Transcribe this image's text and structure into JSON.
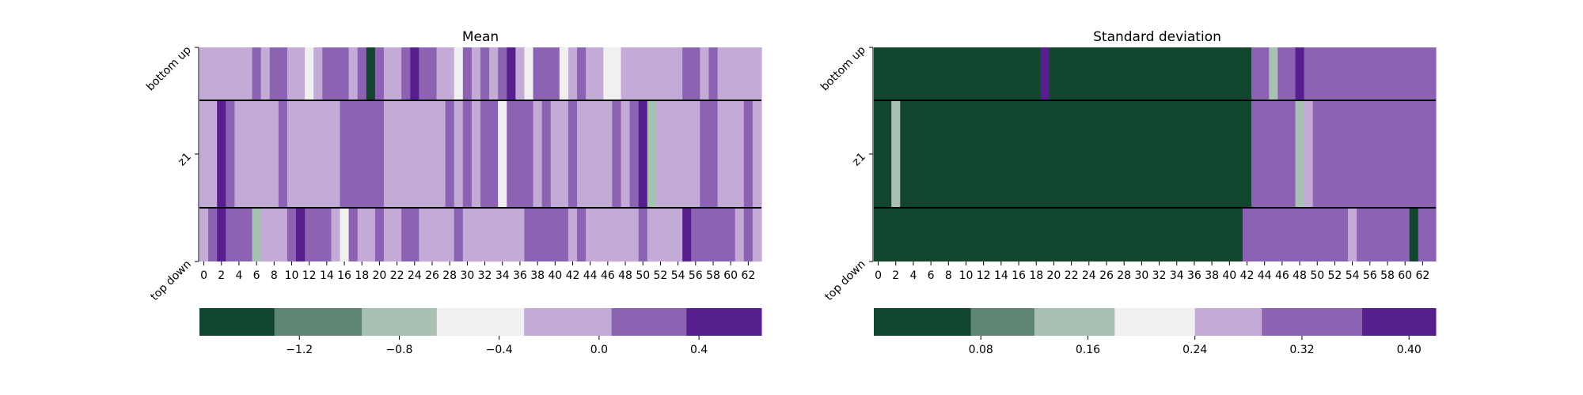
{
  "palette": [
    "#12452e",
    "#5d8571",
    "#a8c1b3",
    "#f0f0f0",
    "#c3aad7",
    "#8c63b2",
    "#571f8e"
  ],
  "chart_data": [
    {
      "type": "heatmap",
      "title": "Mean",
      "row_labels": [
        "bottom up",
        "z1",
        "top down"
      ],
      "x_tick_labels": [
        "0",
        "2",
        "4",
        "6",
        "8",
        "10",
        "12",
        "14",
        "16",
        "18",
        "20",
        "22",
        "24",
        "26",
        "28",
        "30",
        "32",
        "34",
        "36",
        "38",
        "40",
        "42",
        "44",
        "46",
        "48",
        "50",
        "52",
        "54",
        "56",
        "58",
        "60",
        "62"
      ],
      "n_cols": 64,
      "rows": [
        [
          0.0,
          0.0,
          0.0,
          0.0,
          0.0,
          0.0,
          0.2,
          0.0,
          0.2,
          0.2,
          0.0,
          0.0,
          -0.4,
          0.0,
          0.2,
          0.2,
          0.2,
          0.0,
          0.2,
          -1.4,
          0.2,
          0.0,
          0.0,
          0.2,
          0.5,
          0.2,
          0.2,
          0.0,
          0.0,
          -0.4,
          0.2,
          0.0,
          0.2,
          0.0,
          0.2,
          0.5,
          0.0,
          -0.4,
          0.2,
          0.2,
          0.2,
          -0.4,
          0.0,
          0.2,
          0.0,
          0.0,
          -0.4,
          -0.4,
          0.0,
          0.0,
          0.0,
          0.0,
          0.0,
          0.0,
          0.0,
          0.2,
          0.2,
          0.0,
          0.2,
          0.0,
          0.0,
          0.0,
          0.0,
          0.0
        ],
        [
          0.0,
          0.0,
          0.5,
          0.2,
          0.0,
          0.0,
          0.0,
          0.0,
          0.0,
          0.2,
          0.0,
          0.0,
          0.0,
          0.0,
          0.0,
          0.0,
          0.2,
          0.2,
          0.2,
          0.2,
          0.2,
          0.0,
          0.0,
          0.0,
          0.0,
          0.0,
          0.0,
          0.0,
          0.2,
          0.0,
          0.2,
          0.0,
          0.2,
          0.2,
          -0.4,
          0.2,
          0.2,
          0.2,
          0.0,
          0.2,
          0.0,
          0.0,
          0.2,
          0.0,
          0.0,
          0.0,
          0.0,
          0.2,
          0.0,
          0.2,
          0.5,
          -0.8,
          0.0,
          0.0,
          0.0,
          0.0,
          0.0,
          0.2,
          0.2,
          0.0,
          0.0,
          0.0,
          0.2,
          0.0
        ],
        [
          0.0,
          0.2,
          0.5,
          0.2,
          0.2,
          0.2,
          -0.8,
          0.0,
          0.0,
          0.0,
          0.2,
          0.5,
          0.2,
          0.2,
          0.2,
          0.0,
          -0.4,
          0.2,
          0.0,
          0.0,
          0.2,
          0.0,
          0.0,
          0.2,
          0.2,
          0.0,
          0.0,
          0.0,
          0.0,
          0.2,
          0.0,
          0.0,
          0.0,
          0.0,
          0.0,
          0.0,
          0.0,
          0.2,
          0.2,
          0.2,
          0.2,
          0.2,
          0.0,
          0.2,
          0.0,
          0.0,
          0.0,
          0.0,
          0.0,
          0.0,
          0.2,
          0.0,
          0.0,
          0.0,
          0.0,
          0.5,
          0.2,
          0.2,
          0.2,
          0.2,
          0.2,
          0.0,
          0.2,
          0.0
        ]
      ],
      "colorbar": {
        "tick_labels": [
          "−1.2",
          "−0.8",
          "−0.4",
          "0.0",
          "0.4"
        ],
        "tick_values": [
          -1.2,
          -0.8,
          -0.4,
          0.0,
          0.4
        ],
        "boundaries": [
          -1.6,
          -1.3,
          -0.95,
          -0.65,
          -0.3,
          0.05,
          0.35,
          0.65
        ]
      }
    },
    {
      "type": "heatmap",
      "title": "Standard deviation",
      "row_labels": [
        "bottom up",
        "z1",
        "top down"
      ],
      "x_tick_labels": [
        "0",
        "2",
        "4",
        "6",
        "8",
        "10",
        "12",
        "14",
        "16",
        "18",
        "20",
        "22",
        "24",
        "26",
        "28",
        "30",
        "32",
        "34",
        "36",
        "38",
        "40",
        "42",
        "44",
        "46",
        "48",
        "50",
        "52",
        "54",
        "56",
        "58",
        "60",
        "62"
      ],
      "n_cols": 64,
      "rows": [
        [
          0.06,
          0.06,
          0.06,
          0.02,
          0.06,
          0.02,
          0.02,
          0.02,
          0.02,
          0.06,
          0.02,
          0.02,
          0.06,
          0.02,
          0.02,
          0.02,
          0.02,
          0.02,
          0.02,
          0.4,
          0.02,
          0.02,
          0.02,
          0.02,
          0.02,
          0.02,
          0.02,
          0.02,
          0.02,
          0.02,
          0.02,
          0.02,
          0.02,
          0.02,
          0.02,
          0.02,
          0.02,
          0.02,
          0.02,
          0.02,
          0.02,
          0.02,
          0.02,
          0.3,
          0.3,
          0.15,
          0.3,
          0.3,
          0.4,
          0.35,
          0.35,
          0.35,
          0.35,
          0.3,
          0.3,
          0.3,
          0.35,
          0.35,
          0.3,
          0.3,
          0.3,
          0.35,
          0.3,
          0.35
        ],
        [
          0.02,
          0.02,
          0.15,
          0.06,
          0.06,
          0.02,
          0.06,
          0.06,
          0.02,
          0.02,
          0.06,
          0.02,
          0.02,
          0.02,
          0.02,
          0.02,
          0.06,
          0.02,
          0.02,
          0.02,
          0.06,
          0.02,
          0.02,
          0.02,
          0.02,
          0.02,
          0.02,
          0.02,
          0.02,
          0.02,
          0.02,
          0.02,
          0.02,
          0.02,
          0.02,
          0.02,
          0.02,
          0.02,
          0.02,
          0.02,
          0.02,
          0.02,
          0.02,
          0.3,
          0.35,
          0.3,
          0.35,
          0.3,
          0.15,
          0.24,
          0.3,
          0.35,
          0.35,
          0.35,
          0.35,
          0.35,
          0.35,
          0.35,
          0.35,
          0.35,
          0.3,
          0.35,
          0.3,
          0.35
        ],
        [
          0.02,
          0.02,
          0.06,
          0.02,
          0.06,
          0.02,
          0.02,
          0.06,
          0.06,
          0.02,
          0.06,
          0.02,
          0.06,
          0.02,
          0.02,
          0.02,
          0.02,
          0.02,
          0.02,
          0.02,
          0.06,
          0.02,
          0.02,
          0.02,
          0.02,
          0.02,
          0.02,
          0.02,
          0.02,
          0.02,
          0.02,
          0.02,
          0.02,
          0.02,
          0.02,
          0.02,
          0.02,
          0.02,
          0.02,
          0.02,
          0.02,
          0.02,
          0.3,
          0.3,
          0.35,
          0.3,
          0.3,
          0.35,
          0.3,
          0.35,
          0.35,
          0.3,
          0.3,
          0.35,
          0.24,
          0.3,
          0.3,
          0.3,
          0.3,
          0.3,
          0.35,
          0.06,
          0.35,
          0.35
        ]
      ],
      "colorbar": {
        "tick_labels": [
          "0.08",
          "0.16",
          "0.24",
          "0.32",
          "0.40"
        ],
        "tick_values": [
          0.08,
          0.16,
          0.24,
          0.32,
          0.4
        ],
        "boundaries": [
          0.0,
          0.0725,
          0.12,
          0.18,
          0.24,
          0.29,
          0.365,
          0.42
        ]
      }
    }
  ]
}
